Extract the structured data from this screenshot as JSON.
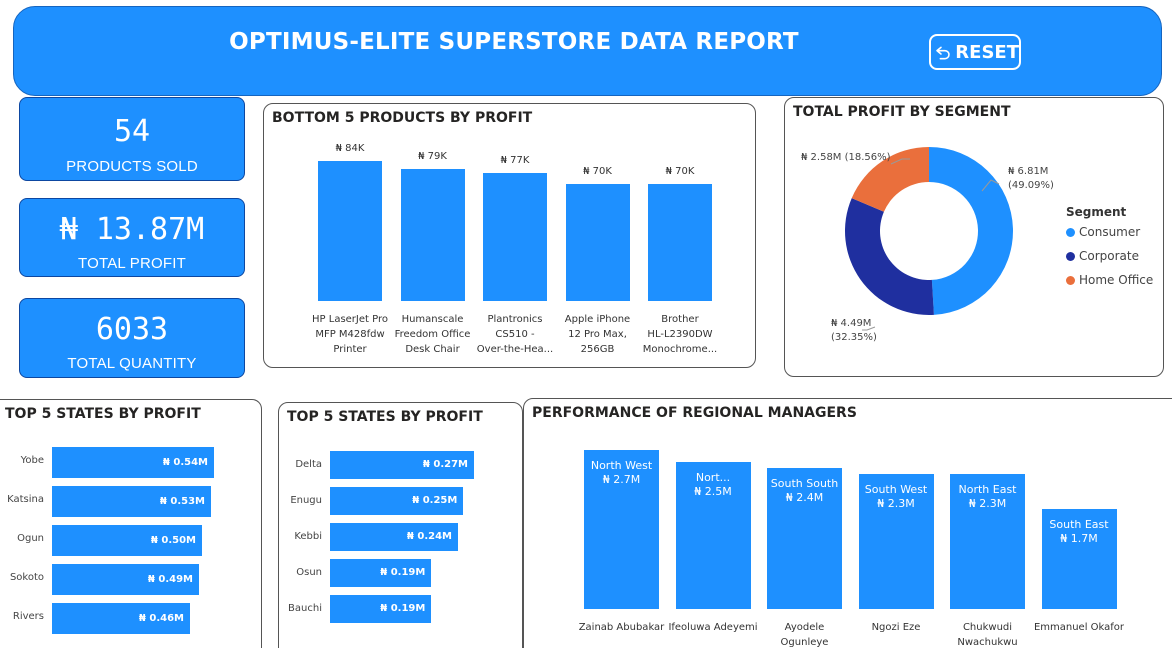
{
  "header": {
    "title": "OPTIMUS-ELITE SUPERSTORE DATA REPORT",
    "reset_label": "RESET"
  },
  "kpis": [
    {
      "value": "54",
      "label": "PRODUCTS SOLD"
    },
    {
      "value": "₦ 13.87M",
      "label": "TOTAL PROFIT"
    },
    {
      "value": "6033",
      "label": "TOTAL QUANTITY"
    }
  ],
  "colors": {
    "accent": "#1e90ff",
    "consumer": "#1e90ff",
    "corporate": "#1f2f9f",
    "home_office": "#ea6f3c"
  },
  "chart_data": [
    {
      "type": "bar",
      "title": "BOTTOM 5 PRODUCTS BY PROFIT",
      "categories": [
        "HP LaserJet Pro MFP M428fdw Printer",
        "Humanscale Freedom Office Desk Chair",
        "Plantronics CS510 - Over-the-Hea...",
        "Apple iPhone 12 Pro Max, 256GB",
        "Brother HL-L2390DW Monochrome..."
      ],
      "category_lines": [
        [
          "HP LaserJet Pro",
          "MFP M428fdw",
          "Printer"
        ],
        [
          "Humanscale",
          "Freedom Office",
          "Desk Chair"
        ],
        [
          "Plantronics",
          "CS510 -",
          "Over-the-Hea..."
        ],
        [
          "Apple iPhone",
          "12 Pro Max,",
          "256GB"
        ],
        [
          "Brother",
          "HL-L2390DW",
          "Monochrome..."
        ]
      ],
      "values": [
        84000,
        79000,
        77000,
        70000,
        70000
      ],
      "data_labels": [
        "₦ 84K",
        "₦ 79K",
        "₦ 77K",
        "₦ 70K",
        "₦ 70K"
      ],
      "ylim": [
        0,
        84000
      ]
    },
    {
      "type": "pie",
      "title": "TOTAL PROFIT BY SEGMENT",
      "legend_title": "Segment",
      "legend_position": "right",
      "categories": [
        "Consumer",
        "Corporate",
        "Home Office"
      ],
      "values": [
        6.81,
        4.49,
        2.58
      ],
      "percents": [
        49.09,
        32.35,
        18.56
      ],
      "value_labels": [
        "₦ 6.81M",
        "₦ 4.49M",
        "₦ 2.58M"
      ],
      "percent_labels": [
        "(49.09%)",
        "(32.35%)",
        "(18.56%)"
      ],
      "colors": [
        "#1e90ff",
        "#1f2f9f",
        "#ea6f3c"
      ]
    },
    {
      "type": "bar",
      "orientation": "horizontal",
      "title": "TOP 5 STATES BY PROFIT",
      "categories": [
        "Yobe",
        "Katsina",
        "Ogun",
        "Sokoto",
        "Rivers"
      ],
      "values": [
        0.54,
        0.53,
        0.5,
        0.49,
        0.46
      ],
      "data_labels": [
        "₦ 0.54M",
        "₦ 0.53M",
        "₦ 0.50M",
        "₦ 0.49M",
        "₦ 0.46M"
      ],
      "ylim": [
        0,
        0.54
      ]
    },
    {
      "type": "bar",
      "orientation": "horizontal",
      "title": "TOP 5 STATES BY PROFIT",
      "categories": [
        "Delta",
        "Enugu",
        "Kebbi",
        "Osun",
        "Bauchi"
      ],
      "values": [
        0.27,
        0.25,
        0.24,
        0.19,
        0.19
      ],
      "data_labels": [
        "₦ 0.27M",
        "₦ 0.25M",
        "₦ 0.24M",
        "₦ 0.19M",
        "₦ 0.19M"
      ],
      "ylim": [
        0,
        0.27
      ]
    },
    {
      "type": "bar",
      "title": "PERFORMANCE OF REGIONAL MANAGERS",
      "categories": [
        "Zainab Abubakar",
        "Ifeoluwa Adeyemi",
        "Ayodele Ogunleye",
        "Ngozi Eze",
        "Chukwudi Nwachukwu",
        "Emmanuel Okafor"
      ],
      "category_lines": [
        [
          "Zainab Abubakar"
        ],
        [
          "Ifeoluwa Adeyemi"
        ],
        [
          "Ayodele",
          "Ogunleye"
        ],
        [
          "Ngozi Eze"
        ],
        [
          "Chukwudi",
          "Nwachukwu"
        ],
        [
          "Emmanuel Okafor"
        ]
      ],
      "regions": [
        "North West",
        "Nort...",
        "South South",
        "South West",
        "North East",
        "South East"
      ],
      "values": [
        2.7,
        2.5,
        2.4,
        2.3,
        2.3,
        1.7
      ],
      "data_labels": [
        "₦ 2.7M",
        "₦ 2.5M",
        "₦ 2.4M",
        "₦ 2.3M",
        "₦ 2.3M",
        "₦ 1.7M"
      ],
      "ylim": [
        0,
        2.7
      ]
    }
  ]
}
